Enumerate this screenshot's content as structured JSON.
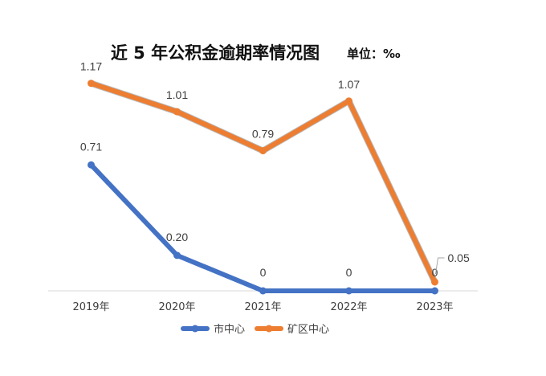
{
  "chart_data": {
    "type": "line",
    "title": "近 5 年公积金逾期率情况图",
    "unit_label": "单位：‰",
    "categories": [
      "2019年",
      "2020年",
      "2021年",
      "2022年",
      "2023年"
    ],
    "ylim": [
      0,
      1.3
    ],
    "grid": false,
    "legend_position": "bottom",
    "series": [
      {
        "name": "市中心",
        "color": "#4472C4",
        "values": [
          0.71,
          0.2,
          0,
          0,
          0
        ],
        "labels": [
          "0.71",
          "0.20",
          "0",
          "0",
          "0"
        ]
      },
      {
        "name": "矿区中心",
        "color": "#ED7D31",
        "values": [
          1.17,
          1.01,
          0.79,
          1.07,
          0.05
        ],
        "labels": [
          "1.17",
          "1.01",
          "0.79",
          "1.07",
          "0.05"
        ]
      }
    ]
  }
}
